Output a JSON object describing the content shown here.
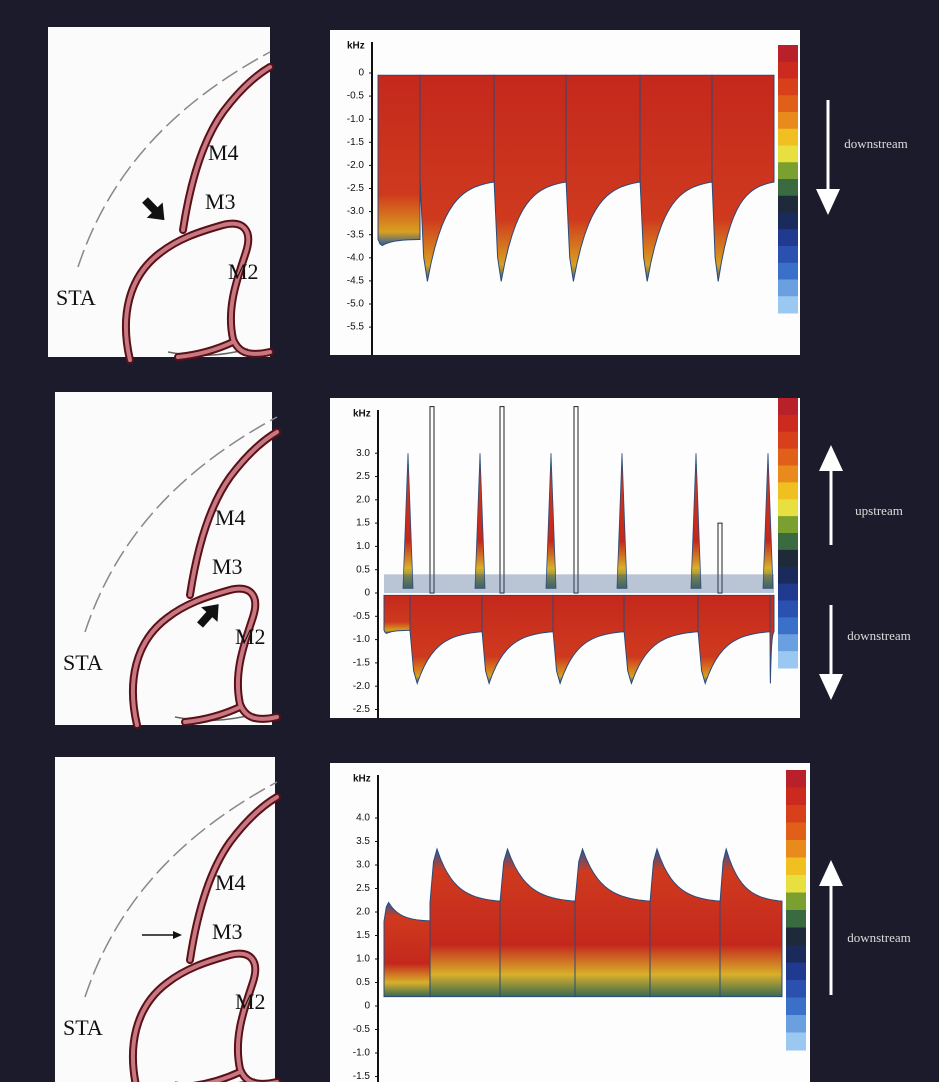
{
  "panels": [
    {
      "diagram": {
        "labels": [
          "M4",
          "M3",
          "M2",
          "STA"
        ]
      },
      "spectrum": {
        "unit": "kHz",
        "yticks": [
          0,
          -0.5,
          {
            "value": -1,
            "label": "-1.0"
          },
          -1.5,
          {
            "value": -2,
            "label": "-2.0"
          },
          -2.5,
          {
            "value": -3,
            "label": "-3.0"
          },
          -3.5,
          {
            "value": -4,
            "label": "-4.0"
          },
          -4.5,
          {
            "value": -5,
            "label": "-5.0"
          },
          -5.5
        ]
      },
      "arrows": [
        "downstream"
      ]
    },
    {
      "diagram": {
        "labels": [
          "M4",
          "M3",
          "M2",
          "STA"
        ]
      },
      "spectrum": {
        "unit": "kHz",
        "yticks": [
          {
            "value": 3,
            "label": "3.0"
          },
          2.5,
          {
            "value": 2,
            "label": "2.0"
          },
          1.5,
          {
            "value": 1,
            "label": "1.0"
          },
          0.5,
          0,
          -0.5,
          {
            "value": -1,
            "label": "-1.0"
          },
          -1.5,
          {
            "value": -2,
            "label": "-2.0"
          },
          -2.5
        ]
      },
      "arrows": [
        "upstream",
        "downstream"
      ]
    },
    {
      "diagram": {
        "labels": [
          "M4",
          "M3",
          "M2",
          "STA"
        ]
      },
      "spectrum": {
        "unit": "kHz",
        "yticks": [
          {
            "value": 4,
            "label": "4.0"
          },
          3.5,
          {
            "value": 3,
            "label": "3.0"
          },
          2.5,
          {
            "value": 2,
            "label": "2.0"
          },
          1.5,
          {
            "value": 1,
            "label": "1.0"
          },
          0.5,
          0,
          -0.5,
          {
            "value": -1,
            "label": "-1.0"
          },
          -1.5
        ]
      },
      "arrows": [
        "downstream"
      ]
    }
  ]
}
